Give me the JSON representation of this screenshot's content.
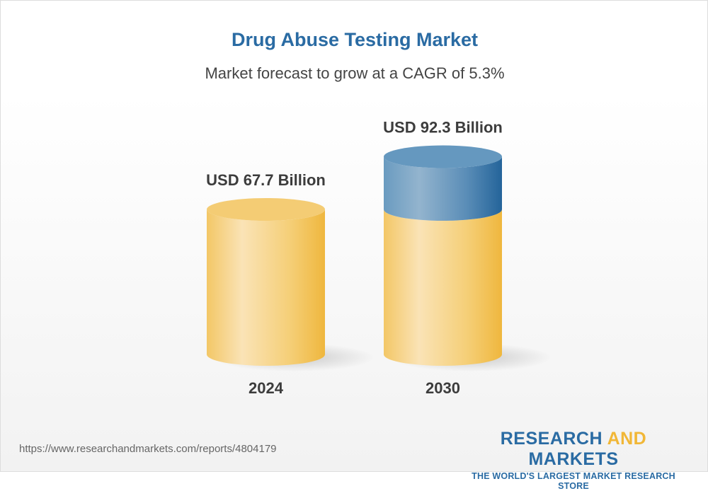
{
  "header": {
    "title": "Drug Abuse Testing Market",
    "subtitle": "Market forecast to grow at a CAGR of 5.3%"
  },
  "chart_data": {
    "type": "bar",
    "style": "3d-cylinder",
    "categories": [
      "2024",
      "2030"
    ],
    "values": [
      67.7,
      92.3
    ],
    "data_labels": [
      "USD 67.7 Billion",
      "USD 92.3 Billion"
    ],
    "colors": {
      "base": "#f2c04f",
      "growth": "#2a6ba3"
    }
  },
  "footer": {
    "url": "https://www.researchandmarkets.com/reports/4804179",
    "logo_part1": "RESEARCH ",
    "logo_part2": "AND",
    "logo_part3": " MARKETS",
    "tagline": "THE WORLD'S LARGEST MARKET RESEARCH STORE"
  }
}
